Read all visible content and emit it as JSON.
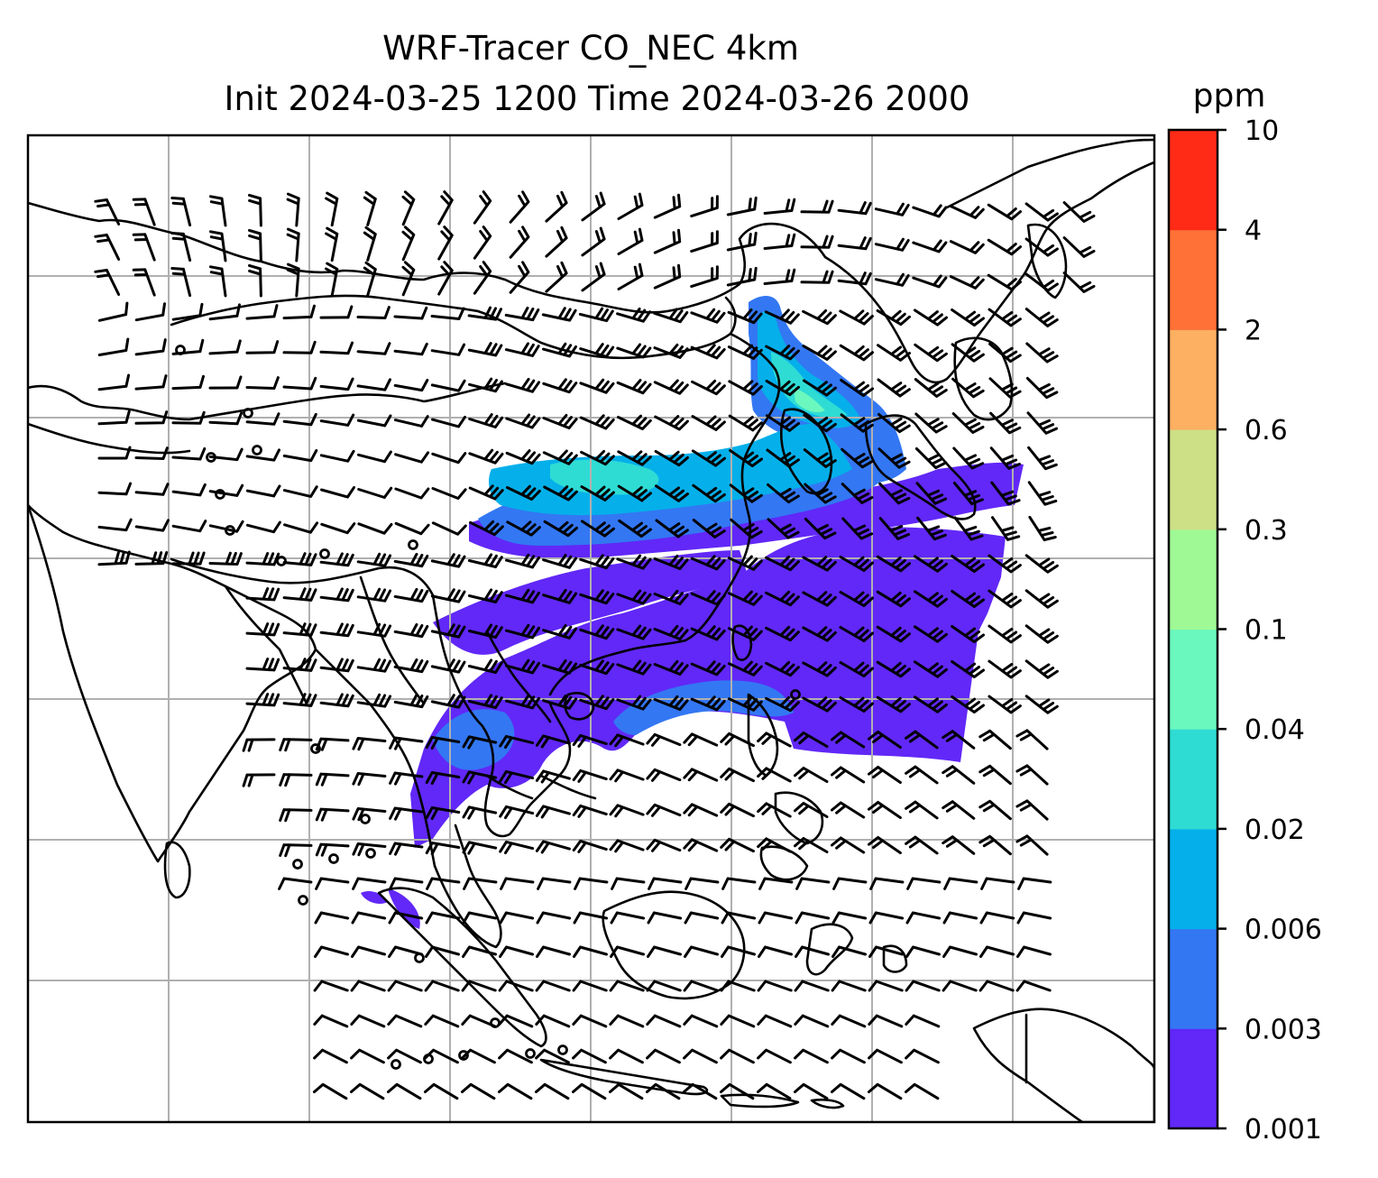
{
  "title": {
    "line1": "WRF-Tracer CO_NEC 4km",
    "line2": "Init 2024-03-25 1200 Time 2024-03-26 2000"
  },
  "colorbar": {
    "unit": "ppm",
    "ticks": [
      "0.001",
      "0.003",
      "0.006",
      "0.02",
      "0.04",
      "0.1",
      "0.3",
      "0.6",
      "2",
      "4",
      "10"
    ],
    "colors": [
      "#6128f7",
      "#3377f3",
      "#05b0ea",
      "#2fdcd4",
      "#6bf8be",
      "#9ff995",
      "#cee086",
      "#fdaf62",
      "#ff7136",
      "#ff2b17"
    ]
  },
  "map": {
    "tracer": "CO_NEC",
    "overlay": "wind barbs",
    "coastline_color": "#000000",
    "gridline_color": "#b0b0b0"
  }
}
